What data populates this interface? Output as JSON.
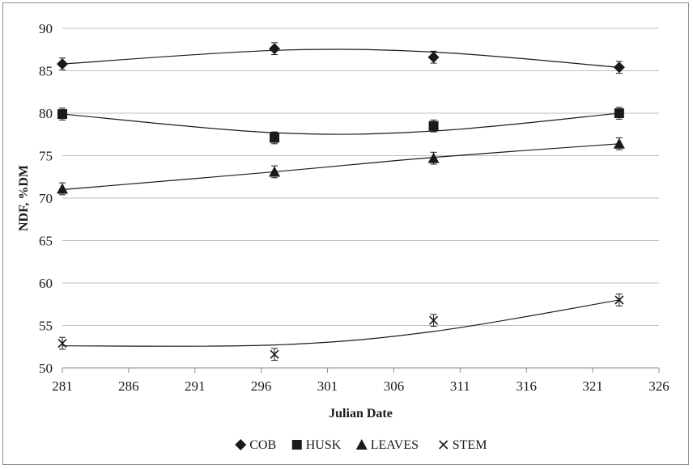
{
  "chart_data": {
    "type": "scatter",
    "xlabel": "Julian Date",
    "ylabel": "NDF, %DM",
    "xlim": [
      281,
      326
    ],
    "ylim": [
      50,
      90
    ],
    "xticks": [
      281,
      286,
      291,
      296,
      301,
      306,
      311,
      316,
      321,
      326
    ],
    "yticks": [
      50,
      55,
      60,
      65,
      70,
      75,
      80,
      85,
      90
    ],
    "grid": "horizontal",
    "legend": "bottom",
    "colors": {
      "marker": "#1a1a1a",
      "line": "#1a1a1a",
      "grid": "#bfbfbf",
      "axis": "#8c8c8c"
    },
    "series": [
      {
        "name": "COB",
        "marker": "diamond",
        "x": [
          281,
          297,
          309,
          323
        ],
        "y": [
          85.8,
          87.6,
          86.6,
          85.4
        ],
        "error": [
          0.7,
          0.7,
          0.7,
          0.7
        ],
        "trend_y": [
          85.8,
          87.4,
          87.2,
          85.4
        ]
      },
      {
        "name": "HUSK",
        "marker": "square",
        "x": [
          281,
          297,
          309,
          323
        ],
        "y": [
          79.9,
          77.1,
          78.5,
          80.0
        ],
        "error": [
          0.7,
          0.7,
          0.7,
          0.7
        ],
        "trend_y": [
          79.9,
          77.7,
          77.9,
          80.0
        ]
      },
      {
        "name": "LEAVES",
        "marker": "triangle",
        "x": [
          281,
          297,
          309,
          323
        ],
        "y": [
          71.1,
          73.1,
          74.7,
          76.4
        ],
        "error": [
          0.7,
          0.7,
          0.7,
          0.7
        ],
        "trend_y": [
          71.0,
          73.1,
          74.8,
          76.4
        ]
      },
      {
        "name": "STEM",
        "marker": "x",
        "x": [
          281,
          297,
          309,
          323
        ],
        "y": [
          52.9,
          51.6,
          55.6,
          58.0
        ],
        "error": [
          0.7,
          0.7,
          0.7,
          0.7
        ],
        "trend_y": [
          52.6,
          52.7,
          54.3,
          58.0
        ]
      }
    ]
  }
}
